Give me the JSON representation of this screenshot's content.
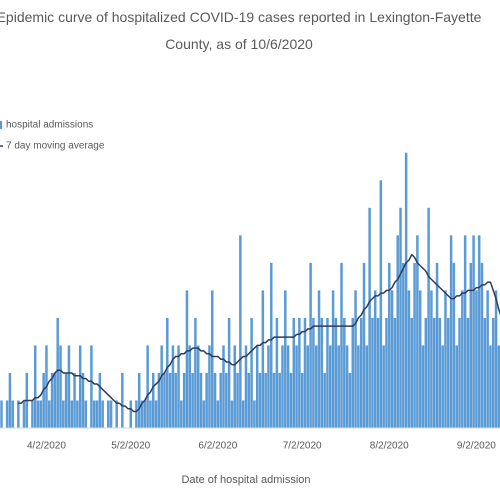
{
  "chart_data": {
    "type": "bar",
    "title": "Epidemic curve of hospitalized COVID-19 cases reported in Lexington-Fayette County, as of 10/6/2020",
    "x_label": "Date of hospital admission",
    "categories": [
      null,
      null,
      null,
      null,
      null,
      null,
      null,
      null,
      null,
      null,
      null,
      null,
      null,
      null,
      null,
      null,
      "4/2/2020",
      null,
      null,
      null,
      null,
      null,
      null,
      null,
      null,
      null,
      null,
      null,
      null,
      null,
      null,
      null,
      null,
      null,
      null,
      null,
      null,
      null,
      null,
      null,
      null,
      null,
      null,
      null,
      null,
      null,
      "5/2/2020",
      null,
      null,
      null,
      null,
      null,
      null,
      null,
      null,
      null,
      null,
      null,
      null,
      null,
      null,
      null,
      null,
      null,
      null,
      null,
      null,
      null,
      null,
      null,
      null,
      null,
      null,
      null,
      null,
      null,
      null,
      "6/2/2020",
      null,
      null,
      null,
      null,
      null,
      null,
      null,
      null,
      null,
      null,
      null,
      null,
      null,
      null,
      null,
      null,
      null,
      null,
      null,
      null,
      null,
      null,
      null,
      null,
      null,
      null,
      null,
      null,
      null,
      "7/2/2020",
      null,
      null,
      null,
      null,
      null,
      null,
      null,
      null,
      null,
      null,
      null,
      null,
      null,
      null,
      null,
      null,
      null,
      null,
      null,
      null,
      null,
      null,
      null,
      null,
      null,
      null,
      null,
      null,
      null,
      null,
      "8/2/2020",
      null,
      null,
      null,
      null,
      null,
      null,
      null,
      null,
      null,
      null,
      null,
      null,
      null,
      null,
      null,
      null,
      null,
      null,
      null,
      null,
      null,
      null,
      null,
      null,
      null,
      null,
      null,
      null,
      null,
      null,
      "9/2/2020",
      null,
      null,
      null,
      null,
      null,
      null,
      null,
      null,
      null
    ],
    "series": [
      {
        "name": "hospital admissions",
        "type": "bar",
        "color": "#5b9bd5",
        "values": [
          1,
          0,
          1,
          2,
          1,
          0,
          1,
          0,
          1,
          2,
          0,
          1,
          3,
          1,
          1,
          2,
          3,
          1,
          2,
          2,
          4,
          3,
          1,
          2,
          3,
          1,
          2,
          1,
          3,
          2,
          1,
          0,
          3,
          1,
          1,
          2,
          1,
          0,
          1,
          1,
          0,
          1,
          0,
          2,
          0,
          0,
          1,
          0,
          1,
          2,
          1,
          1,
          3,
          1,
          2,
          1,
          2,
          3,
          2,
          4,
          2,
          3,
          2,
          3,
          1,
          2,
          5,
          3,
          2,
          4,
          3,
          2,
          1,
          2,
          3,
          5,
          2,
          1,
          2,
          3,
          2,
          4,
          1,
          3,
          2,
          7,
          1,
          3,
          2,
          4,
          1,
          3,
          2,
          5,
          2,
          3,
          6,
          2,
          4,
          2,
          3,
          5,
          3,
          2,
          4,
          3,
          4,
          2,
          4,
          3,
          6,
          4,
          3,
          5,
          4,
          2,
          4,
          3,
          5,
          4,
          3,
          6,
          4,
          3,
          2,
          4,
          5,
          3,
          4,
          6,
          3,
          8,
          4,
          5,
          4,
          9,
          3,
          4,
          6,
          5,
          4,
          7,
          8,
          6,
          10,
          5,
          4,
          6,
          7,
          5,
          3,
          4,
          8,
          5,
          4,
          6,
          4,
          3,
          5,
          4,
          7,
          6,
          3,
          4,
          5,
          7,
          4,
          6,
          7,
          5,
          7,
          6,
          4,
          5,
          3,
          4,
          5,
          3,
          4
        ]
      },
      {
        "name": "7 day moving average",
        "type": "line",
        "color": "#2f3b5c",
        "values": [
          null,
          null,
          null,
          null,
          null,
          null,
          0.9,
          0.9,
          1.0,
          1.0,
          1.0,
          1.0,
          1.1,
          1.1,
          1.2,
          1.4,
          1.5,
          1.7,
          1.8,
          2.0,
          2.1,
          2.1,
          2.0,
          2.0,
          2.0,
          2.0,
          1.9,
          1.9,
          1.9,
          1.8,
          1.8,
          1.7,
          1.7,
          1.6,
          1.6,
          1.5,
          1.4,
          1.3,
          1.2,
          1.1,
          1.0,
          0.9,
          0.9,
          0.8,
          0.8,
          0.7,
          0.7,
          0.6,
          0.6,
          0.7,
          0.9,
          1.0,
          1.2,
          1.3,
          1.5,
          1.6,
          1.7,
          1.9,
          2.0,
          2.2,
          2.3,
          2.5,
          2.6,
          2.6,
          2.7,
          2.7,
          2.8,
          2.8,
          2.9,
          2.9,
          2.9,
          2.8,
          2.8,
          2.7,
          2.7,
          2.6,
          2.6,
          2.6,
          2.5,
          2.5,
          2.4,
          2.4,
          2.3,
          2.3,
          2.4,
          2.5,
          2.6,
          2.6,
          2.7,
          2.8,
          2.9,
          3.0,
          3.0,
          3.1,
          3.1,
          3.2,
          3.2,
          3.3,
          3.3,
          3.3,
          3.3,
          3.3,
          3.3,
          3.3,
          3.3,
          3.4,
          3.4,
          3.5,
          3.5,
          3.6,
          3.6,
          3.7,
          3.7,
          3.7,
          3.7,
          3.7,
          3.7,
          3.7,
          3.7,
          3.7,
          3.7,
          3.7,
          3.7,
          3.7,
          3.7,
          3.7,
          3.8,
          4.0,
          4.1,
          4.3,
          4.4,
          4.6,
          4.7,
          4.8,
          4.8,
          4.9,
          4.9,
          5.0,
          5.0,
          5.1,
          5.3,
          5.4,
          5.6,
          5.8,
          6.0,
          6.1,
          6.3,
          6.2,
          6.0,
          5.9,
          5.8,
          5.7,
          5.5,
          5.4,
          5.3,
          5.2,
          5.1,
          5.0,
          4.9,
          4.8,
          4.7,
          4.7,
          4.8,
          4.8,
          4.9,
          4.9,
          5.0,
          5.0,
          5.0,
          5.1,
          5.1,
          5.2,
          5.2,
          5.3,
          5.3,
          5.0,
          4.7,
          4.3,
          4.0
        ]
      }
    ],
    "ylim": [
      0,
      10.5
    ],
    "legend": "top-left"
  }
}
